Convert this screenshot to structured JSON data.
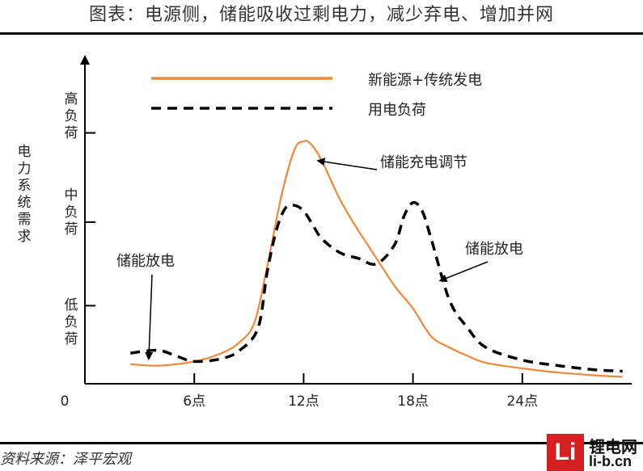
{
  "title": "图表：电源侧，储能吸收过剩电力，减少弃电、增加并网",
  "source": "资料来源：泽平宏观",
  "logo": {
    "mark": "Li",
    "name": "锂电网",
    "url": "li-b.cn"
  },
  "chart_data": {
    "type": "line",
    "ylabel": "电力系统需求",
    "y_ticks": [
      "低负荷",
      "中负荷",
      "高负荷"
    ],
    "x_ticks": [
      "0",
      "6点",
      "12点",
      "18点",
      "24点"
    ],
    "x_tick_values": [
      0,
      6,
      12,
      18,
      24
    ],
    "xlim": [
      0,
      30
    ],
    "ylim": [
      0,
      100
    ],
    "legend": {
      "placement": "top"
    },
    "annotations": [
      {
        "text": "储能放电",
        "anchor_x": 3.5,
        "anchor_y": 9
      },
      {
        "text": "储能充电调节",
        "anchor_x": 12.8,
        "anchor_y": 80
      },
      {
        "text": "储能放电",
        "anchor_x": 19.5,
        "anchor_y": 37
      }
    ],
    "series": [
      {
        "name": "新能源+传统发电",
        "style": "solid",
        "color": "#f0883a",
        "x": [
          2.5,
          4,
          6,
          7.5,
          8.5,
          9.3,
          10,
          10.8,
          11.5,
          12,
          12.4,
          13,
          14,
          15,
          16,
          17,
          18,
          19,
          20,
          21,
          22,
          24,
          26,
          28,
          29.5
        ],
        "y": [
          7,
          6.5,
          8,
          11,
          15,
          22,
          42,
          68,
          84,
          87,
          86,
          80,
          66,
          55,
          45,
          35,
          27,
          17,
          13,
          10,
          7.5,
          5.5,
          4,
          3,
          2.5
        ]
      },
      {
        "name": "用电负荷",
        "style": "dashed",
        "color": "#000000",
        "x": [
          2.5,
          4,
          5,
          6,
          7.5,
          8.5,
          9.5,
          10,
          10.5,
          11,
          11.5,
          12,
          12.5,
          13,
          14,
          15,
          16,
          17,
          17.5,
          18,
          18.5,
          19,
          20,
          21,
          22,
          24,
          26,
          28,
          29.5
        ],
        "y": [
          11,
          12,
          10,
          8,
          9,
          12,
          20,
          40,
          55,
          63,
          64,
          62,
          57,
          52,
          47,
          45,
          43,
          50,
          60,
          65,
          62,
          52,
          30,
          20,
          13,
          8.5,
          6.5,
          5,
          4.5
        ]
      }
    ]
  }
}
